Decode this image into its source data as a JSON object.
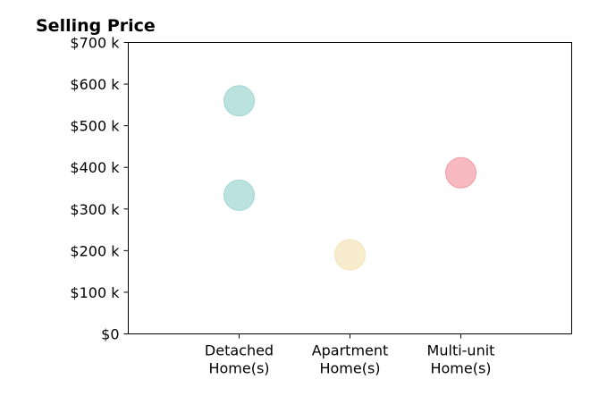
{
  "chart_data": {
    "type": "scatter",
    "title": "Selling Price",
    "xlabel": "",
    "ylabel": "",
    "categories": [
      [
        "Detached",
        "Home(s)"
      ],
      [
        "Apartment",
        "Home(s)"
      ],
      [
        "Multi-unit",
        "Home(s)"
      ]
    ],
    "yticks": [
      {
        "value": 0,
        "label": "$0"
      },
      {
        "value": 100000,
        "label": "$100 k"
      },
      {
        "value": 200000,
        "label": "$200 k"
      },
      {
        "value": 300000,
        "label": "$300 k"
      },
      {
        "value": 400000,
        "label": "$400 k"
      },
      {
        "value": 500000,
        "label": "$500 k"
      },
      {
        "value": 600000,
        "label": "$600 k"
      },
      {
        "value": 700000,
        "label": "$700 k"
      }
    ],
    "ylim": [
      0,
      700000
    ],
    "grid": false,
    "points": [
      {
        "category": 0,
        "y": 560000,
        "color": "#8ecfc9"
      },
      {
        "category": 0,
        "y": 333000,
        "color": "#8ecfc9"
      },
      {
        "category": 1,
        "y": 190000,
        "color": "#f4dfae"
      },
      {
        "category": 2,
        "y": 387000,
        "color": "#f08c96"
      }
    ]
  }
}
